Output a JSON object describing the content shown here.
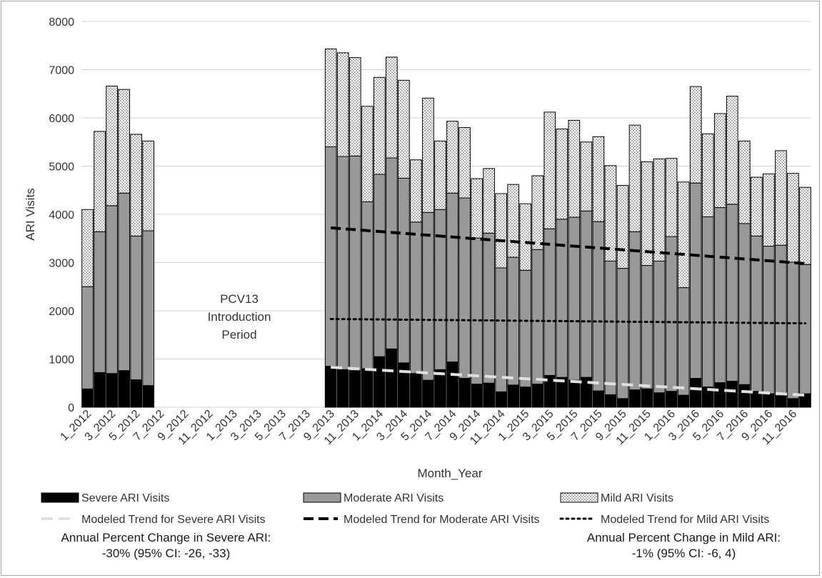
{
  "chart_data": {
    "type": "bar",
    "stacked": true,
    "xlabel": "Month_Year",
    "ylabel": "ARI Visits",
    "ylim": [
      0,
      8000
    ],
    "yticks": [
      0,
      1000,
      2000,
      3000,
      4000,
      5000,
      6000,
      7000,
      8000
    ],
    "grid": "horizontal",
    "legend_position": "bottom",
    "categories": [
      "1_2012",
      "2_2012",
      "3_2012",
      "4_2012",
      "5_2012",
      "6_2012",
      "7_2012",
      "8_2012",
      "9_2012",
      "10_2012",
      "11_2012",
      "12_2012",
      "1_2013",
      "2_2013",
      "3_2013",
      "4_2013",
      "5_2013",
      "6_2013",
      "7_2013",
      "8_2013",
      "9_2013",
      "10_2013",
      "11_2013",
      "12_2013",
      "1_2014",
      "2_2014",
      "3_2014",
      "4_2014",
      "5_2014",
      "6_2014",
      "7_2014",
      "8_2014",
      "9_2014",
      "10_2014",
      "11_2014",
      "12_2014",
      "1_2015",
      "2_2015",
      "3_2015",
      "4_2015",
      "5_2015",
      "6_2015",
      "7_2015",
      "8_2015",
      "9_2015",
      "10_2015",
      "11_2015",
      "12_2015",
      "1_2016",
      "2_2016",
      "3_2016",
      "4_2016",
      "5_2016",
      "6_2016",
      "7_2016",
      "8_2016",
      "9_2016",
      "10_2016",
      "11_2016",
      "12_2016"
    ],
    "tick_labels": [
      "1_2012",
      "3_2012",
      "5_2012",
      "7_2012",
      "9_2012",
      "11_2012",
      "1_2013",
      "3_2013",
      "5_2013",
      "7_2013",
      "9_2013",
      "11_2013",
      "1_2014",
      "3_2014",
      "5_2014",
      "7_2014",
      "9_2014",
      "11_2014",
      "1_2015",
      "3_2015",
      "5_2015",
      "7_2015",
      "9_2015",
      "11_2015",
      "1_2016",
      "3_2016",
      "5_2016",
      "7_2016",
      "9_2016",
      "11_2016"
    ],
    "series": [
      {
        "name": "Severe ARI Visits",
        "color": "#000000",
        "pattern": "solid",
        "values": [
          380,
          720,
          700,
          760,
          570,
          450,
          null,
          null,
          null,
          null,
          null,
          null,
          null,
          null,
          null,
          null,
          null,
          null,
          null,
          null,
          850,
          780,
          760,
          800,
          1050,
          1210,
          920,
          700,
          560,
          780,
          940,
          600,
          480,
          500,
          320,
          460,
          420,
          480,
          660,
          620,
          560,
          620,
          340,
          260,
          180,
          360,
          380,
          300,
          330,
          250,
          600,
          420,
          510,
          540,
          470,
          330,
          280,
          240,
          180,
          280
        ]
      },
      {
        "name": "Moderate ARI Visits",
        "color": "#999999",
        "pattern": "solid",
        "values": [
          2120,
          2920,
          3480,
          3680,
          2980,
          3210,
          null,
          null,
          null,
          null,
          null,
          null,
          null,
          null,
          null,
          null,
          null,
          null,
          null,
          null,
          4550,
          4420,
          4450,
          3460,
          3780,
          3960,
          3830,
          3140,
          3480,
          3320,
          3500,
          3740,
          3030,
          3110,
          2570,
          2650,
          2420,
          2790,
          3040,
          3280,
          3380,
          3450,
          3510,
          2770,
          2700,
          3280,
          2560,
          2730,
          3210,
          2230,
          4050,
          3530,
          3630,
          3670,
          3340,
          3220,
          3060,
          3120,
          2830,
          2680
        ]
      },
      {
        "name": "Mild ARI Visits",
        "color": "#ffffff",
        "pattern": "dots",
        "values": [
          1600,
          2080,
          2480,
          2150,
          2110,
          1860,
          null,
          null,
          null,
          null,
          null,
          null,
          null,
          null,
          null,
          null,
          null,
          null,
          null,
          null,
          2030,
          2150,
          2040,
          1980,
          2010,
          2090,
          2030,
          1290,
          2370,
          1420,
          1490,
          1460,
          1230,
          1340,
          1540,
          1510,
          1380,
          1530,
          2420,
          1870,
          2010,
          1430,
          1760,
          1980,
          1720,
          2210,
          2150,
          2120,
          1620,
          2190,
          2000,
          1720,
          1950,
          2240,
          1710,
          1220,
          1500,
          1960,
          1840,
          1600
        ]
      }
    ],
    "trends": [
      {
        "name": "Modeled Trend for Severe ARI Visits",
        "style": "light-dashed",
        "color": "#e0e0e0",
        "start": [
          20,
          830
        ],
        "end": [
          59,
          250
        ]
      },
      {
        "name": "Modeled Trend for Moderate ARI Visits",
        "style": "dashed",
        "color": "#000000",
        "start": [
          20,
          3720
        ],
        "end": [
          59,
          2980
        ]
      },
      {
        "name": "Modeled Trend for Mild ARI Visits",
        "style": "dotted",
        "color": "#000000",
        "start": [
          20,
          1830
        ],
        "end": [
          59,
          1740
        ]
      }
    ],
    "annotations": {
      "gap_label": "PCV13 Introduction Period",
      "severe_change_line1": "Annual Percent Change in Severe ARI:",
      "severe_change_line2": "-30% (95% CI: -26, -33)",
      "mild_change_line1": "Annual Percent Change in Mild ARI:",
      "mild_change_line2": "-1% (95% CI: -6, 4)"
    }
  }
}
